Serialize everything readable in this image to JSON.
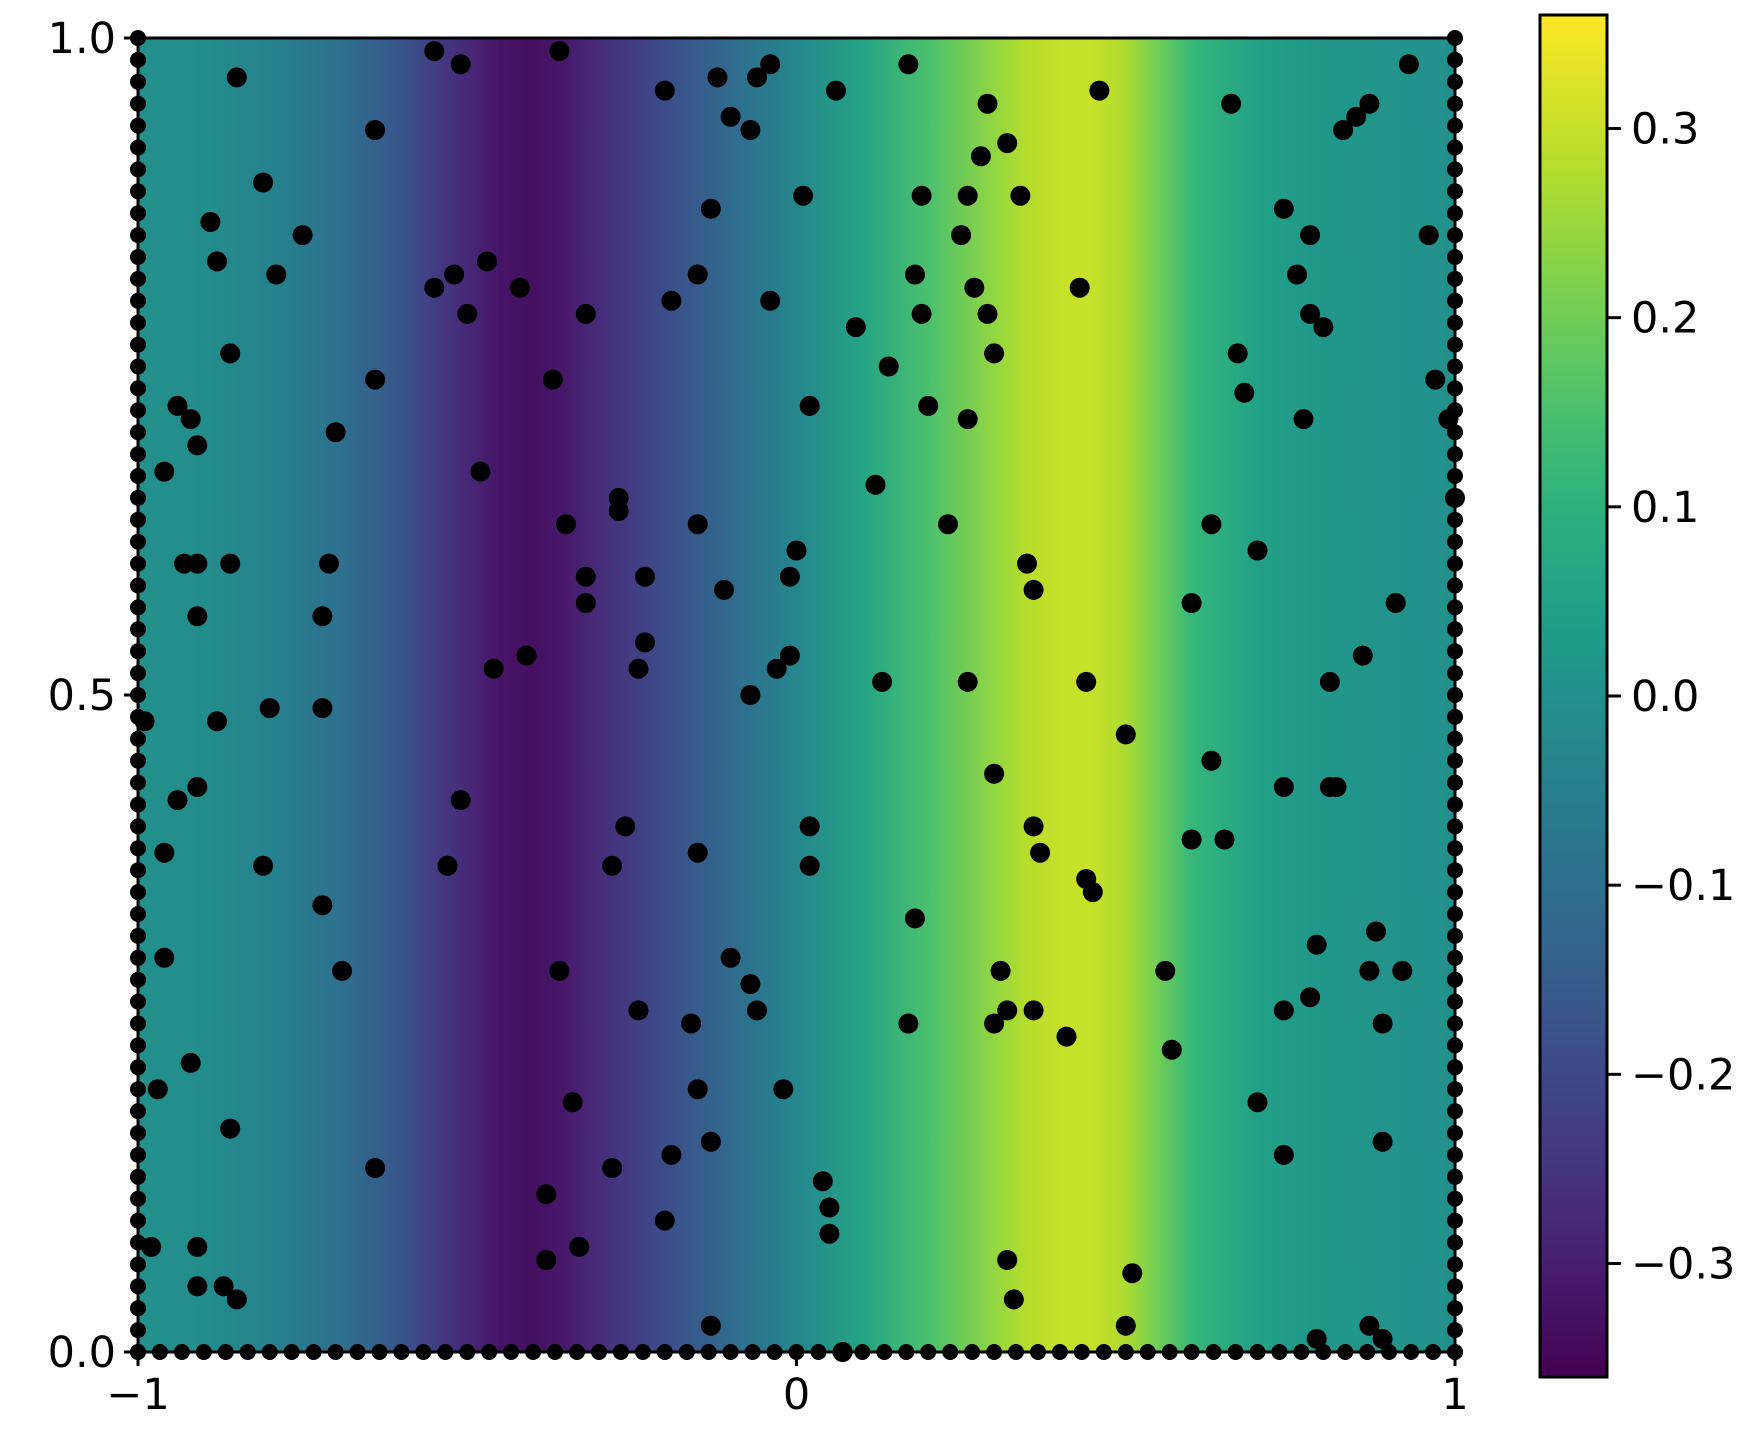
{
  "chart_data": {
    "type": "heatmap",
    "colormap": "viridis",
    "title": "",
    "xlabel": "",
    "ylabel": "",
    "xlim": [
      -1,
      1
    ],
    "ylim": [
      0,
      1
    ],
    "x_ticks": [
      -1,
      0,
      1
    ],
    "x_tick_labels": [
      "−1",
      "0",
      "1"
    ],
    "y_ticks": [
      0.0,
      0.5,
      1.0
    ],
    "y_tick_labels": [
      "0.0",
      "0.5",
      "1.0"
    ],
    "field_profile": {
      "x": [
        -1.0,
        -0.9,
        -0.8,
        -0.7,
        -0.6,
        -0.55,
        -0.5,
        -0.45,
        -0.4,
        -0.35,
        -0.3,
        -0.2,
        -0.1,
        0.0,
        0.1,
        0.2,
        0.3,
        0.35,
        0.4,
        0.45,
        0.5,
        0.55,
        0.6,
        0.7,
        0.8,
        0.9,
        1.0
      ],
      "value": [
        0.0,
        -0.01,
        -0.04,
        -0.09,
        -0.17,
        -0.23,
        -0.28,
        -0.32,
        -0.33,
        -0.31,
        -0.27,
        -0.19,
        -0.11,
        -0.03,
        0.06,
        0.15,
        0.24,
        0.28,
        0.3,
        0.3,
        0.27,
        0.2,
        0.12,
        0.05,
        0.02,
        0.01,
        0.0
      ]
    },
    "colorbar": {
      "range": [
        -0.36,
        0.36
      ],
      "ticks": [
        -0.3,
        -0.2,
        -0.1,
        0.0,
        0.1,
        0.2,
        0.3
      ],
      "tick_labels": [
        "−0.3",
        "−0.2",
        "−0.1",
        "0.0",
        "0.1",
        "0.2",
        "0.3"
      ]
    },
    "point_color": "#000000",
    "points": [
      [
        -0.55,
        0.99
      ],
      [
        -0.51,
        0.98
      ],
      [
        -0.36,
        0.99
      ],
      [
        -0.85,
        0.97
      ],
      [
        -0.64,
        0.93
      ],
      [
        -0.81,
        0.89
      ],
      [
        -0.89,
        0.86
      ],
      [
        -0.88,
        0.83
      ],
      [
        -0.75,
        0.85
      ],
      [
        -0.79,
        0.82
      ],
      [
        -0.86,
        0.76
      ],
      [
        -0.55,
        0.81
      ],
      [
        -0.52,
        0.82
      ],
      [
        -0.47,
        0.83
      ],
      [
        -0.42,
        0.81
      ],
      [
        -0.5,
        0.79
      ],
      [
        -0.32,
        0.79
      ],
      [
        -0.37,
        0.74
      ],
      [
        -0.64,
        0.74
      ],
      [
        -0.7,
        0.7
      ],
      [
        -0.48,
        0.67
      ],
      [
        -0.94,
        0.72
      ],
      [
        -0.92,
        0.71
      ],
      [
        -0.91,
        0.69
      ],
      [
        -0.96,
        0.67
      ],
      [
        -0.93,
        0.6
      ],
      [
        -0.91,
        0.6
      ],
      [
        -0.86,
        0.6
      ],
      [
        -0.71,
        0.6
      ],
      [
        -0.35,
        0.63
      ],
      [
        -0.27,
        0.64
      ],
      [
        -0.32,
        0.59
      ],
      [
        -0.32,
        0.57
      ],
      [
        -0.91,
        0.56
      ],
      [
        -0.72,
        0.56
      ],
      [
        -0.41,
        0.53
      ],
      [
        -0.46,
        0.52
      ],
      [
        -0.99,
        0.48
      ],
      [
        -0.88,
        0.48
      ],
      [
        -0.8,
        0.49
      ],
      [
        -0.72,
        0.49
      ],
      [
        -0.91,
        0.43
      ],
      [
        -0.94,
        0.42
      ],
      [
        -0.51,
        0.42
      ],
      [
        -0.96,
        0.38
      ],
      [
        -0.81,
        0.37
      ],
      [
        -0.53,
        0.37
      ],
      [
        -0.53,
        0.37
      ],
      [
        -0.72,
        0.34
      ],
      [
        -0.96,
        0.3
      ],
      [
        -0.36,
        0.29
      ],
      [
        -0.69,
        0.29
      ],
      [
        -0.92,
        0.22
      ],
      [
        -0.97,
        0.2
      ],
      [
        -0.86,
        0.17
      ],
      [
        -0.64,
        0.14
      ],
      [
        -0.34,
        0.19
      ],
      [
        -0.38,
        0.12
      ],
      [
        -0.98,
        0.08
      ],
      [
        -0.91,
        0.08
      ],
      [
        -0.91,
        0.05
      ],
      [
        -0.87,
        0.05
      ],
      [
        -0.85,
        0.04
      ],
      [
        -0.38,
        0.07
      ],
      [
        -0.33,
        0.08
      ],
      [
        -0.2,
        0.96
      ],
      [
        -0.12,
        0.97
      ],
      [
        -0.1,
        0.94
      ],
      [
        -0.07,
        0.93
      ],
      [
        -0.06,
        0.97
      ],
      [
        -0.04,
        0.98
      ],
      [
        0.06,
        0.96
      ],
      [
        -0.13,
        0.87
      ],
      [
        0.01,
        0.88
      ],
      [
        -0.15,
        0.82
      ],
      [
        -0.19,
        0.8
      ],
      [
        -0.04,
        0.8
      ],
      [
        0.09,
        0.78
      ],
      [
        0.02,
        0.72
      ],
      [
        0.12,
        0.66
      ],
      [
        -0.15,
        0.63
      ],
      [
        -0.27,
        0.65
      ],
      [
        -0.23,
        0.59
      ],
      [
        -0.11,
        0.58
      ],
      [
        0.0,
        0.61
      ],
      [
        -0.01,
        0.59
      ],
      [
        -0.23,
        0.54
      ],
      [
        -0.24,
        0.52
      ],
      [
        -0.01,
        0.53
      ],
      [
        -0.03,
        0.52
      ],
      [
        -0.07,
        0.5
      ],
      [
        -0.26,
        0.4
      ],
      [
        -0.28,
        0.37
      ],
      [
        -0.15,
        0.38
      ],
      [
        0.02,
        0.4
      ],
      [
        0.02,
        0.37
      ],
      [
        -0.24,
        0.26
      ],
      [
        -0.16,
        0.25
      ],
      [
        -0.1,
        0.3
      ],
      [
        -0.07,
        0.28
      ],
      [
        -0.06,
        0.26
      ],
      [
        -0.02,
        0.2
      ],
      [
        -0.15,
        0.2
      ],
      [
        -0.13,
        0.16
      ],
      [
        -0.19,
        0.15
      ],
      [
        -0.28,
        0.14
      ],
      [
        -0.2,
        0.1
      ],
      [
        0.04,
        0.13
      ],
      [
        0.05,
        0.11
      ],
      [
        0.05,
        0.09
      ],
      [
        -0.13,
        0.02
      ],
      [
        0.07,
        0.0
      ],
      [
        0.17,
        0.98
      ],
      [
        0.19,
        0.88
      ],
      [
        0.26,
        0.88
      ],
      [
        0.29,
        0.95
      ],
      [
        0.32,
        0.92
      ],
      [
        0.28,
        0.91
      ],
      [
        0.34,
        0.88
      ],
      [
        0.46,
        0.96
      ],
      [
        0.25,
        0.85
      ],
      [
        0.18,
        0.82
      ],
      [
        0.27,
        0.81
      ],
      [
        0.29,
        0.79
      ],
      [
        0.19,
        0.79
      ],
      [
        0.3,
        0.76
      ],
      [
        0.43,
        0.81
      ],
      [
        0.14,
        0.75
      ],
      [
        0.2,
        0.72
      ],
      [
        0.26,
        0.71
      ],
      [
        0.23,
        0.63
      ],
      [
        0.35,
        0.6
      ],
      [
        0.36,
        0.58
      ],
      [
        0.13,
        0.51
      ],
      [
        0.26,
        0.51
      ],
      [
        0.44,
        0.51
      ],
      [
        0.5,
        0.47
      ],
      [
        0.3,
        0.44
      ],
      [
        0.36,
        0.4
      ],
      [
        0.37,
        0.38
      ],
      [
        0.44,
        0.36
      ],
      [
        0.45,
        0.35
      ],
      [
        0.18,
        0.33
      ],
      [
        0.31,
        0.29
      ],
      [
        0.32,
        0.26
      ],
      [
        0.3,
        0.25
      ],
      [
        0.36,
        0.26
      ],
      [
        0.41,
        0.24
      ],
      [
        0.17,
        0.25
      ],
      [
        0.32,
        0.07
      ],
      [
        0.33,
        0.04
      ],
      [
        0.51,
        0.06
      ],
      [
        0.5,
        0.02
      ],
      [
        0.66,
        0.95
      ],
      [
        0.83,
        0.93
      ],
      [
        0.85,
        0.94
      ],
      [
        0.87,
        0.95
      ],
      [
        0.93,
        0.98
      ],
      [
        0.74,
        0.87
      ],
      [
        0.78,
        0.85
      ],
      [
        0.96,
        0.85
      ],
      [
        0.76,
        0.82
      ],
      [
        0.78,
        0.79
      ],
      [
        0.8,
        0.78
      ],
      [
        0.67,
        0.76
      ],
      [
        0.68,
        0.73
      ],
      [
        0.77,
        0.71
      ],
      [
        0.97,
        0.74
      ],
      [
        0.99,
        0.71
      ],
      [
        1.0,
        0.65
      ],
      [
        0.63,
        0.63
      ],
      [
        0.7,
        0.61
      ],
      [
        0.6,
        0.57
      ],
      [
        0.91,
        0.57
      ],
      [
        0.86,
        0.53
      ],
      [
        0.81,
        0.51
      ],
      [
        0.63,
        0.45
      ],
      [
        0.74,
        0.43
      ],
      [
        0.81,
        0.43
      ],
      [
        0.82,
        0.43
      ],
      [
        0.6,
        0.39
      ],
      [
        0.65,
        0.39
      ],
      [
        0.79,
        0.31
      ],
      [
        0.88,
        0.32
      ],
      [
        0.87,
        0.29
      ],
      [
        0.92,
        0.29
      ],
      [
        0.56,
        0.29
      ],
      [
        0.74,
        0.26
      ],
      [
        0.78,
        0.27
      ],
      [
        0.89,
        0.25
      ],
      [
        0.57,
        0.23
      ],
      [
        0.7,
        0.19
      ],
      [
        0.74,
        0.15
      ],
      [
        0.89,
        0.16
      ],
      [
        0.87,
        0.02
      ],
      [
        0.89,
        0.01
      ],
      [
        0.79,
        0.01
      ]
    ]
  }
}
